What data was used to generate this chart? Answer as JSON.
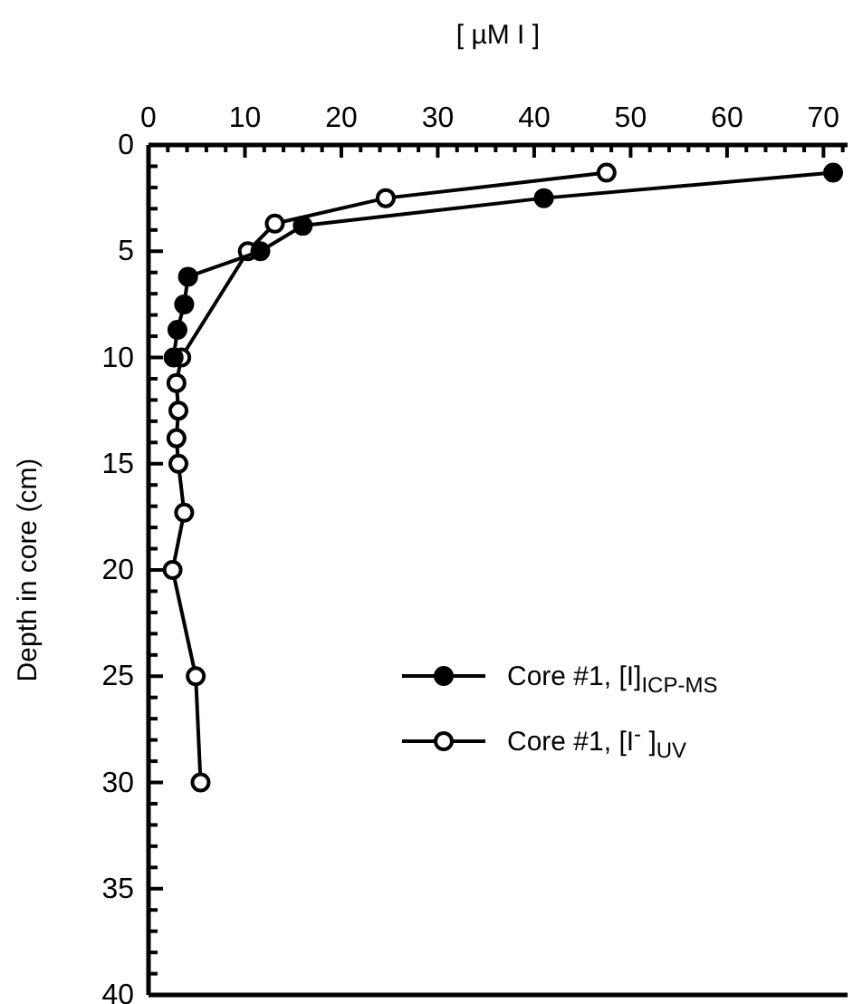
{
  "chart_data": {
    "type": "line",
    "xlabel": "[ µM I ]",
    "ylabel": "Depth in core (cm)",
    "xlim": [
      0,
      72.5
    ],
    "ylim": [
      40,
      0
    ],
    "xticks": [
      0,
      {
        "value": 2,
        "label": null
      },
      {
        "value": 4,
        "label": null
      },
      {
        "value": 6,
        "label": null
      },
      {
        "value": 8,
        "label": null
      },
      10,
      {
        "value": 12,
        "label": null
      },
      {
        "value": 14,
        "label": null
      },
      {
        "value": 16,
        "label": null
      },
      {
        "value": 18,
        "label": null
      },
      20,
      {
        "value": 22,
        "label": null
      },
      {
        "value": 24,
        "label": null
      },
      {
        "value": 26,
        "label": null
      },
      {
        "value": 28,
        "label": null
      },
      30,
      {
        "value": 32,
        "label": null
      },
      {
        "value": 34,
        "label": null
      },
      {
        "value": 36,
        "label": null
      },
      {
        "value": 38,
        "label": null
      },
      40,
      {
        "value": 42,
        "label": null
      },
      {
        "value": 44,
        "label": null
      },
      {
        "value": 46,
        "label": null
      },
      {
        "value": 48,
        "label": null
      },
      50,
      {
        "value": 52,
        "label": null
      },
      {
        "value": 54,
        "label": null
      },
      {
        "value": 56,
        "label": null
      },
      {
        "value": 58,
        "label": null
      },
      60,
      {
        "value": 62,
        "label": null
      },
      {
        "value": 64,
        "label": null
      },
      {
        "value": 66,
        "label": null
      },
      {
        "value": 68,
        "label": null
      },
      70,
      {
        "value": 72,
        "label": null
      }
    ],
    "yticks": [
      0,
      {
        "value": 1,
        "label": null
      },
      {
        "value": 2,
        "label": null
      },
      {
        "value": 3,
        "label": null
      },
      {
        "value": 4,
        "label": null
      },
      5,
      {
        "value": 6,
        "label": null
      },
      {
        "value": 7,
        "label": null
      },
      {
        "value": 8,
        "label": null
      },
      {
        "value": 9,
        "label": null
      },
      10,
      {
        "value": 11,
        "label": null
      },
      {
        "value": 12,
        "label": null
      },
      {
        "value": 13,
        "label": null
      },
      {
        "value": 14,
        "label": null
      },
      15,
      {
        "value": 16,
        "label": null
      },
      {
        "value": 17,
        "label": null
      },
      {
        "value": 18,
        "label": null
      },
      {
        "value": 19,
        "label": null
      },
      20,
      {
        "value": 21,
        "label": null
      },
      {
        "value": 22,
        "label": null
      },
      {
        "value": 23,
        "label": null
      },
      {
        "value": 24,
        "label": null
      },
      25,
      {
        "value": 26,
        "label": null
      },
      {
        "value": 27,
        "label": null
      },
      {
        "value": 28,
        "label": null
      },
      {
        "value": 29,
        "label": null
      },
      30,
      {
        "value": 31,
        "label": null
      },
      {
        "value": 32,
        "label": null
      },
      {
        "value": 33,
        "label": null
      },
      {
        "value": 34,
        "label": null
      },
      35,
      {
        "value": 36,
        "label": null
      },
      {
        "value": 37,
        "label": null
      },
      {
        "value": 38,
        "label": null
      },
      {
        "value": 39,
        "label": null
      },
      40
    ],
    "grid": false,
    "legend": "right",
    "line_style": "solid",
    "series": [
      {
        "name": "Core #1, [I]$_{ICP-MS}$",
        "color": "#000000",
        "marker": "circle",
        "x": [
          71,
          41,
          16,
          11.6,
          4.1,
          3.7,
          3,
          2.6
        ],
        "values": [
          1.3,
          2.5,
          3.8,
          5,
          6.2,
          7.5,
          8.7,
          10
        ]
      },
      {
        "name": "Core #1, [I$^{-}$ ]$_{UV}$",
        "color": "#000000",
        "marker": "circle_open",
        "x": [
          47.5,
          24.6,
          13.1,
          10.3,
          3.4,
          2.9,
          3.1,
          2.9,
          3.1,
          3.7,
          2.5,
          4.9,
          5.4
        ],
        "values": [
          1.3,
          2.5,
          3.7,
          5,
          10,
          11.2,
          12.5,
          13.8,
          15,
          17.3,
          20,
          25,
          30
        ]
      }
    ]
  }
}
